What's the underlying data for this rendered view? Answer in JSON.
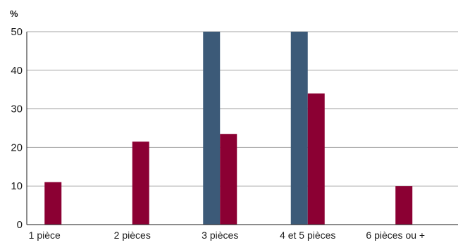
{
  "chart_data": {
    "type": "bar",
    "title": "",
    "xlabel": "",
    "ylabel": "%",
    "ylim": [
      0,
      50
    ],
    "yticks": [
      0,
      10,
      20,
      30,
      40,
      50
    ],
    "grid": true,
    "categories": [
      "1 pièce",
      "2 pièces",
      "3 pièces",
      "4 et 5 pièces",
      "6 pièces ou +"
    ],
    "series": [
      {
        "color": "#3c5a78",
        "values": [
          0,
          0,
          50,
          50,
          0
        ]
      },
      {
        "color": "#8b0033",
        "values": [
          11,
          21.5,
          23.5,
          34,
          10
        ]
      }
    ]
  }
}
